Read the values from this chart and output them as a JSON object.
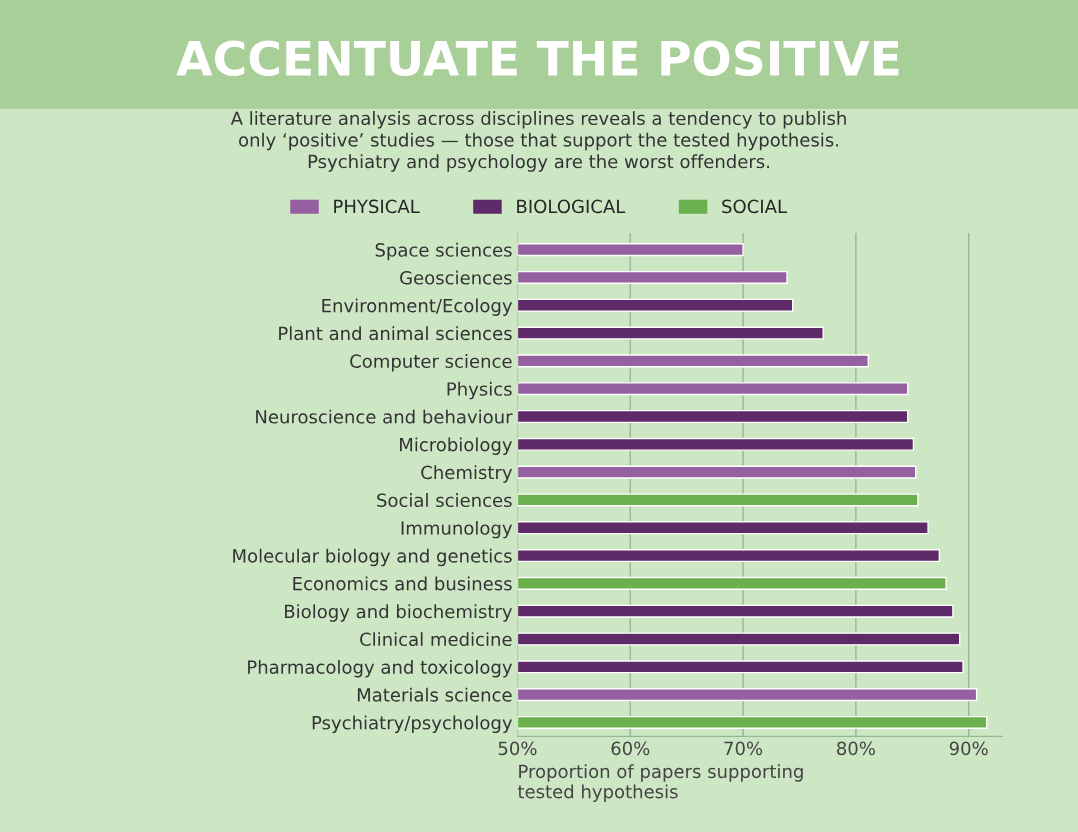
{
  "chart_data": {
    "type": "bar",
    "orientation": "horizontal",
    "title": "ACCENTUATE THE POSITIVE",
    "subtitle": "A literature analysis across disciplines reveals a tendency to publish\nonly ‘positive’ studies — those that support the tested hypothesis.\nPsychiatry and psychology are the worst offenders.",
    "xlabel": "Proportion of papers supporting\ntested hypothesis",
    "categories": [
      "Space sciences",
      "Geosciences",
      "Environment/Ecology",
      "Plant and animal sciences",
      "Computer science",
      "Physics",
      "Neuroscience and behaviour",
      "Microbiology",
      "Chemistry",
      "Social sciences",
      "Immunology",
      "Molecular biology and genetics",
      "Economics and business",
      "Biology and biochemistry",
      "Clinical medicine",
      "Pharmacology and toxicology",
      "Materials science",
      "Psychiatry/psychology"
    ],
    "series": [
      {
        "name": "PHYSICAL",
        "color": "#9460a0",
        "values": [
          70.0,
          73.9,
          null,
          null,
          81.1,
          84.6,
          null,
          null,
          85.3,
          null,
          null,
          null,
          null,
          null,
          null,
          null,
          90.7,
          null
        ]
      },
      {
        "name": "BIOLOGICAL",
        "color": "#5e2a68",
        "values": [
          null,
          null,
          74.4,
          77.1,
          null,
          null,
          84.6,
          85.1,
          null,
          null,
          86.4,
          87.4,
          null,
          88.6,
          89.2,
          89.5,
          null,
          null
        ]
      },
      {
        "name": "SOCIAL",
        "color": "#6ab04c",
        "values": [
          null,
          null,
          null,
          null,
          null,
          null,
          null,
          null,
          null,
          85.5,
          null,
          null,
          88.0,
          null,
          null,
          null,
          null,
          91.6
        ]
      }
    ],
    "xlim": [
      50,
      93
    ],
    "xticks": [
      {
        "value": 50,
        "label": "50%"
      },
      {
        "value": 60,
        "label": "60%"
      },
      {
        "value": 70,
        "label": "70%"
      },
      {
        "value": 80,
        "label": "80%"
      },
      {
        "value": 90,
        "label": "90%"
      }
    ],
    "grid": "x",
    "legend": "top"
  }
}
